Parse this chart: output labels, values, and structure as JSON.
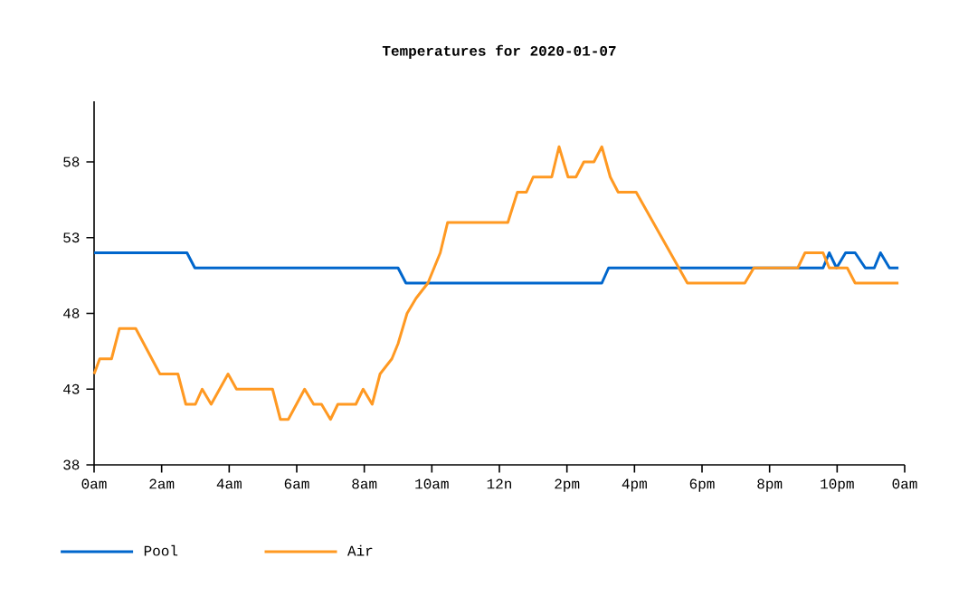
{
  "chart_data": {
    "type": "line",
    "title": "Temperatures for 2020-01-07",
    "xlim": [
      "2020-01-07T00:00",
      "2020-01-08T00:00"
    ],
    "ylim": [
      38,
      62
    ],
    "xticks": [
      {
        "value": "2020-01-07T00:00",
        "label": "0am"
      },
      {
        "value": "2020-01-07T02:00",
        "label": "2am"
      },
      {
        "value": "2020-01-07T04:00",
        "label": "4am"
      },
      {
        "value": "2020-01-07T06:00",
        "label": "6am"
      },
      {
        "value": "2020-01-07T08:00",
        "label": "8am"
      },
      {
        "value": "2020-01-07T10:00",
        "label": "10am"
      },
      {
        "value": "2020-01-07T12:00",
        "label": "12n"
      },
      {
        "value": "2020-01-07T14:00",
        "label": "2pm"
      },
      {
        "value": "2020-01-07T16:00",
        "label": "4pm"
      },
      {
        "value": "2020-01-07T18:00",
        "label": "6pm"
      },
      {
        "value": "2020-01-07T20:00",
        "label": "8pm"
      },
      {
        "value": "2020-01-07T22:00",
        "label": "10pm"
      },
      {
        "value": "2020-01-08T00:00",
        "label": "0am"
      }
    ],
    "yticks": [
      38,
      43,
      48,
      53,
      58
    ],
    "legend": "bottom left",
    "grid": false,
    "marker": "none",
    "line_style": "solid",
    "series": [
      {
        "name": "Pool",
        "color": "#0066cc",
        "x": [
          "2020-01-07T00:00",
          "2020-01-07T02:45",
          "2020-01-07T02:59",
          "2020-01-07T09:00",
          "2020-01-07T09:14",
          "2020-01-07T15:02",
          "2020-01-07T15:14",
          "2020-01-07T21:35",
          "2020-01-07T21:46",
          "2020-01-07T21:59",
          "2020-01-07T22:15",
          "2020-01-07T22:32",
          "2020-01-07T22:50",
          "2020-01-07T23:06",
          "2020-01-07T23:17",
          "2020-01-07T23:33",
          "2020-01-07T23:49"
        ],
        "values": [
          52,
          52,
          51,
          51,
          50,
          50,
          51,
          51,
          52,
          51,
          52,
          52,
          51,
          51,
          52,
          51,
          51
        ]
      },
      {
        "name": "Air",
        "color": "#ff9922",
        "x": [
          "2020-01-07T00:00",
          "2020-01-07T00:10",
          "2020-01-07T00:31",
          "2020-01-07T00:45",
          "2020-01-07T01:14",
          "2020-01-07T01:57",
          "2020-01-07T02:29",
          "2020-01-07T02:43",
          "2020-01-07T03:00",
          "2020-01-07T03:12",
          "2020-01-07T03:28",
          "2020-01-07T03:58",
          "2020-01-07T04:13",
          "2020-01-07T05:17",
          "2020-01-07T05:31",
          "2020-01-07T05:45",
          "2020-01-07T06:14",
          "2020-01-07T06:30",
          "2020-01-07T06:44",
          "2020-01-07T07:00",
          "2020-01-07T07:13",
          "2020-01-07T07:45",
          "2020-01-07T07:58",
          "2020-01-07T08:14",
          "2020-01-07T08:28",
          "2020-01-07T08:49",
          "2020-01-07T09:00",
          "2020-01-07T09:16",
          "2020-01-07T09:32",
          "2020-01-07T09:53",
          "2020-01-07T10:15",
          "2020-01-07T10:28",
          "2020-01-07T12:15",
          "2020-01-07T12:32",
          "2020-01-07T12:48",
          "2020-01-07T13:00",
          "2020-01-07T13:33",
          "2020-01-07T13:46",
          "2020-01-07T14:02",
          "2020-01-07T14:16",
          "2020-01-07T14:30",
          "2020-01-07T14:48",
          "2020-01-07T15:02",
          "2020-01-07T15:17",
          "2020-01-07T15:31",
          "2020-01-07T16:03",
          "2020-01-07T17:34",
          "2020-01-07T19:16",
          "2020-01-07T19:32",
          "2020-01-07T20:50",
          "2020-01-07T21:03",
          "2020-01-07T21:35",
          "2020-01-07T21:46",
          "2020-01-07T22:18",
          "2020-01-07T22:32",
          "2020-01-07T23:49"
        ],
        "values": [
          44,
          45,
          45,
          47,
          47,
          44,
          44,
          42,
          42,
          43,
          42,
          44,
          43,
          43,
          41,
          41,
          43,
          42,
          42,
          41,
          42,
          42,
          43,
          42,
          44,
          45,
          46,
          48,
          49,
          50,
          52,
          54,
          54,
          56,
          56,
          57,
          57,
          59,
          57,
          57,
          58,
          58,
          59,
          57,
          56,
          56,
          50,
          50,
          51,
          51,
          52,
          52,
          51,
          51,
          50,
          50
        ]
      }
    ]
  }
}
